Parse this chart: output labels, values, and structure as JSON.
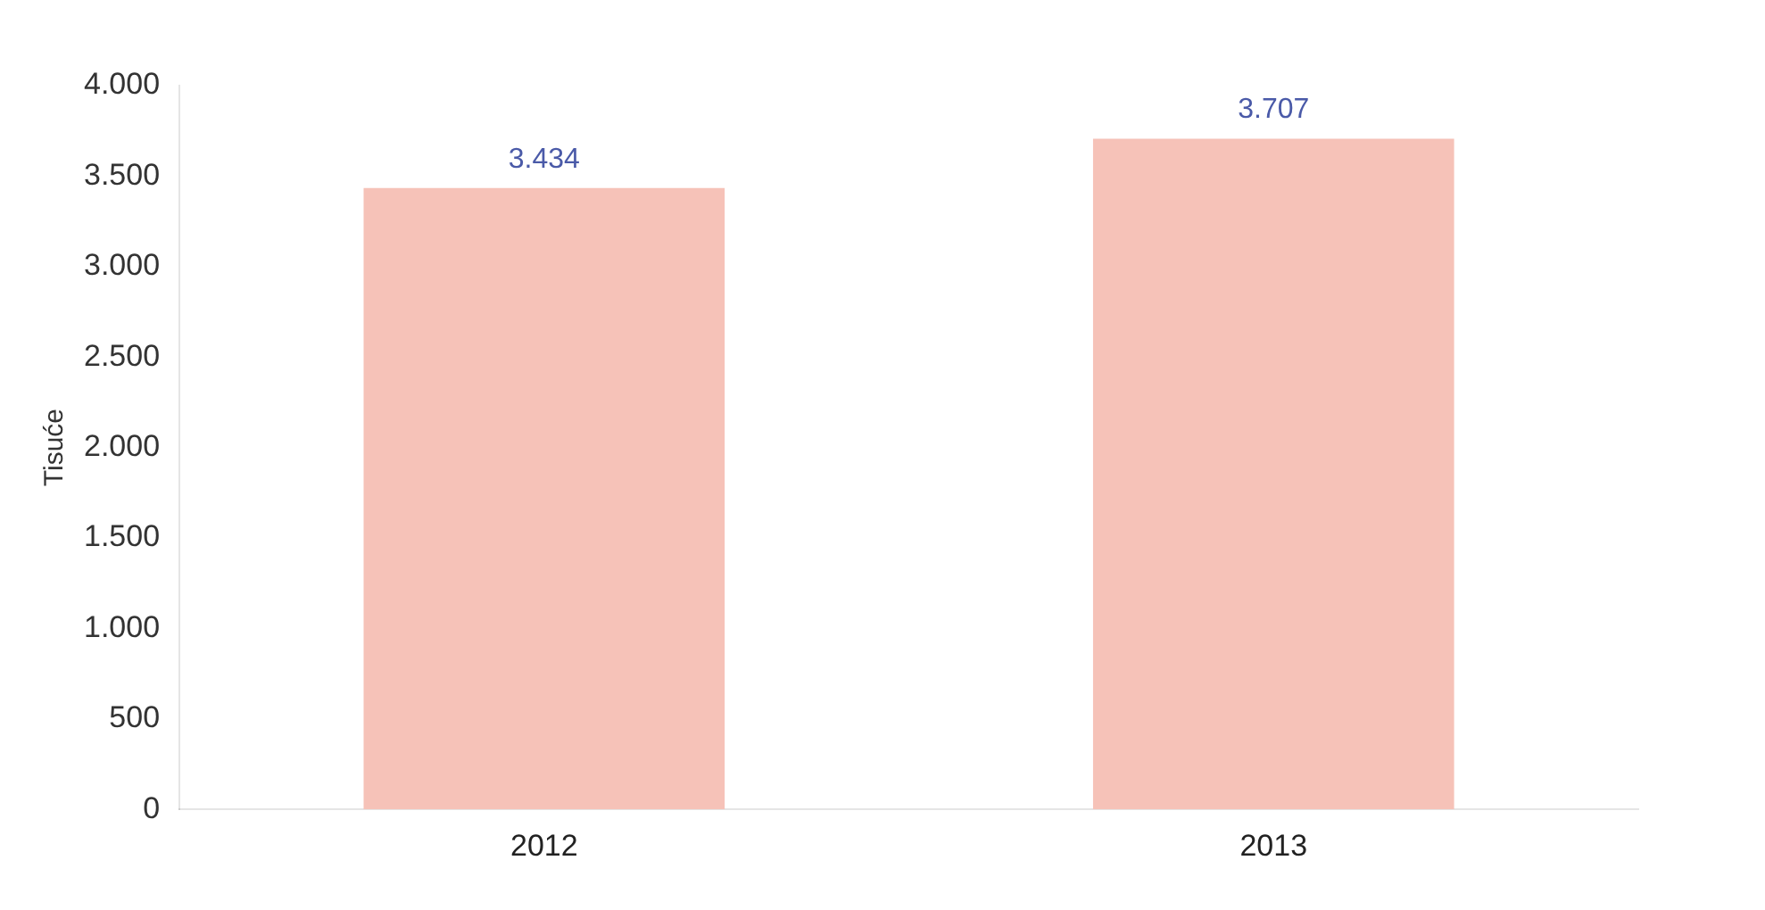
{
  "chart_data": {
    "type": "bar",
    "ylabel": "Tisuće",
    "categories": [
      "2012",
      "2013"
    ],
    "values": [
      3434,
      3707
    ],
    "color": "#f6c2b8",
    "value_labels": [
      "3.434",
      "3.707"
    ],
    "ylim": [
      0,
      4000
    ],
    "yticks": [
      {
        "value": 0,
        "label": "0"
      },
      {
        "value": 500,
        "label": "500"
      },
      {
        "value": 1000,
        "label": "1.000"
      },
      {
        "value": 1500,
        "label": "1.500"
      },
      {
        "value": 2000,
        "label": "2.000"
      },
      {
        "value": 2500,
        "label": "2.500"
      },
      {
        "value": 3000,
        "label": "3.000"
      },
      {
        "value": 3500,
        "label": "3.500"
      },
      {
        "value": 4000,
        "label": "4.000"
      }
    ],
    "grid": false,
    "legend": false
  }
}
